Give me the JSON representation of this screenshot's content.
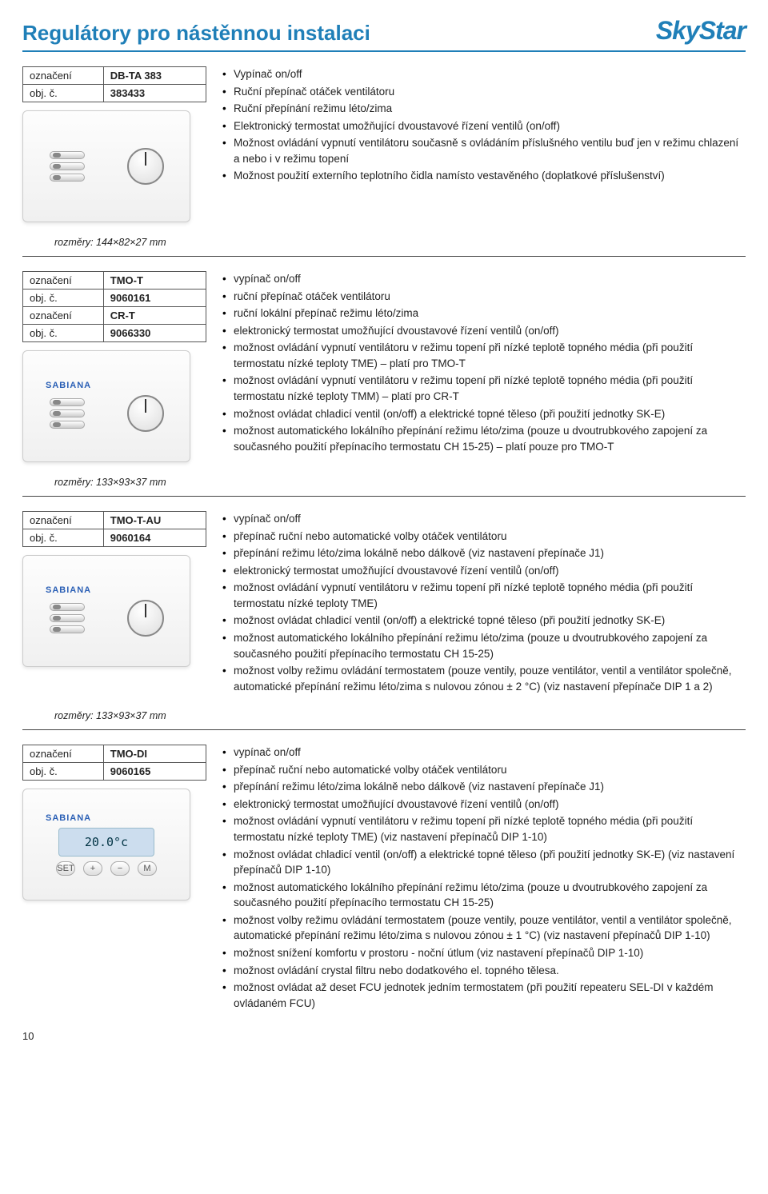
{
  "header": {
    "title": "Regulátory pro nástěnnou instalaci",
    "brand": "SkyStar"
  },
  "labels": {
    "designation": "označení",
    "order_no": "obj. č."
  },
  "sections": [
    {
      "id": "dbta383",
      "specs": [
        {
          "label": "označení",
          "value": "DB-TA 383"
        },
        {
          "label": "obj. č.",
          "value": "383433"
        }
      ],
      "device": {
        "type": "dial-switches",
        "brand": null
      },
      "features": [
        "Vypínač on/off",
        "Ruční přepínač otáček ventilátoru",
        "Ruční přepínání režimu léto/zima",
        "Elektronický termostat umožňující dvoustavové řízení ventilů (on/off)",
        "Možnost ovládání vypnutí ventilátoru současně s ovládáním příslušného ventilu buď jen v režimu chlazení a nebo i v režimu topení",
        "Možnost použití externího teplotního čidla namísto vestavěného (doplatkové příslušenství)"
      ],
      "dims": "rozměry: 144×82×27 mm"
    },
    {
      "id": "tmot",
      "specs": [
        {
          "label": "označení",
          "value": "TMO-T"
        },
        {
          "label": "obj. č.",
          "value": "9060161"
        },
        {
          "label": "označení",
          "value": "CR-T"
        },
        {
          "label": "obj. č.",
          "value": "9066330"
        }
      ],
      "device": {
        "type": "dial-switches",
        "brand": "SABIANA"
      },
      "features": [
        "vypínač on/off",
        "ruční přepínač otáček ventilátoru",
        "ruční lokální přepínač režimu léto/zima",
        "elektronický termostat umožňující dvoustavové řízení ventilů (on/off)",
        "možnost ovládání vypnutí ventilátoru v režimu topení při nízké teplotě topného média (při použití termostatu nízké teploty TME) – platí pro TMO-T",
        "možnost ovládání vypnutí ventilátoru v režimu topení při nízké teplotě topného média (při použití termostatu nízké teploty TMM) – platí pro CR-T",
        "možnost ovládat chladicí ventil (on/off) a elektrické topné těleso (při použití jednotky SK-E)",
        "možnost automatického lokálního přepínání režimu léto/zima (pouze u dvoutrubkového zapojení za současného použití přepínacího termostatu CH 15-25) – platí pouze pro TMO-T"
      ],
      "dims": "rozměry: 133×93×37 mm"
    },
    {
      "id": "tmotau",
      "specs": [
        {
          "label": "označení",
          "value": "TMO-T-AU"
        },
        {
          "label": "obj. č.",
          "value": "9060164"
        }
      ],
      "device": {
        "type": "dial-switches",
        "brand": "SABIANA"
      },
      "features": [
        "vypínač on/off",
        "přepínač ruční nebo automatické volby otáček ventilátoru",
        "přepínání režimu léto/zima lokálně nebo dálkově (viz nastavení přepínače J1)",
        "elektronický termostat umožňující dvoustavové řízení ventilů (on/off)",
        "možnost ovládání vypnutí ventilátoru v režimu topení při nízké teplotě topného média (při použití termostatu nízké teploty TME)",
        "možnost ovládat chladicí ventil (on/off) a elektrické topné těleso (při použití jednotky SK-E)",
        "možnost automatického lokálního přepínání režimu léto/zima (pouze u dvoutrubkového zapojení za současného použití přepínacího termostatu CH 15-25)",
        "možnost volby režimu ovládání termostatem (pouze ventily, pouze ventilátor, ventil a ventilátor společně, automatické přepínání režimu léto/zima s nulovou zónou ± 2 °C) (viz nastavení přepínače DIP 1 a 2)"
      ],
      "dims": "rozměry: 133×93×37 mm"
    },
    {
      "id": "tmodi",
      "specs": [
        {
          "label": "označení",
          "value": "TMO-DI"
        },
        {
          "label": "obj. č.",
          "value": "9060165"
        }
      ],
      "device": {
        "type": "lcd",
        "brand": "SABIANA",
        "lcd_text": "20.0°c"
      },
      "features": [
        "vypínač on/off",
        "přepínač ruční nebo automatické volby otáček ventilátoru",
        "přepínání režimu léto/zima lokálně nebo dálkově (viz nastavení přepínače J1)",
        "elektronický termostat umožňující dvoustavové řízení ventilů (on/off)",
        "možnost ovládání vypnutí ventilátoru v režimu topení při nízké teplotě topného média (při použití termostatu nízké teploty TME) (viz nastavení přepínačů DIP 1-10)",
        "možnost ovládat chladicí ventil (on/off) a elektrické topné těleso (při použití jednotky SK-E) (viz nastavení přepínačů DIP 1-10)",
        "možnost automatického lokálního přepínání režimu léto/zima (pouze u dvoutrubkového zapojení za současného použití přepínacího termostatu CH 15-25)",
        "možnost volby režimu ovládání termostatem (pouze ventily, pouze ventilátor, ventil a ventilátor společně, automatické přepínání režimu léto/zima s nulovou zónou ± 1 °C) (viz nastavení přepínačů DIP 1-10)",
        "možnost snížení komfortu v prostoru - noční útlum (viz nastavení přepínačů DIP 1-10)",
        "možnost ovládání crystal filtru nebo dodatkového el. topného tělesa.",
        "možnost ovládat až deset FCU jednotek jedním termostatem (při použití repeateru SEL-DI v každém ovládaném FCU)"
      ],
      "dims": null
    }
  ],
  "page_number": "10"
}
